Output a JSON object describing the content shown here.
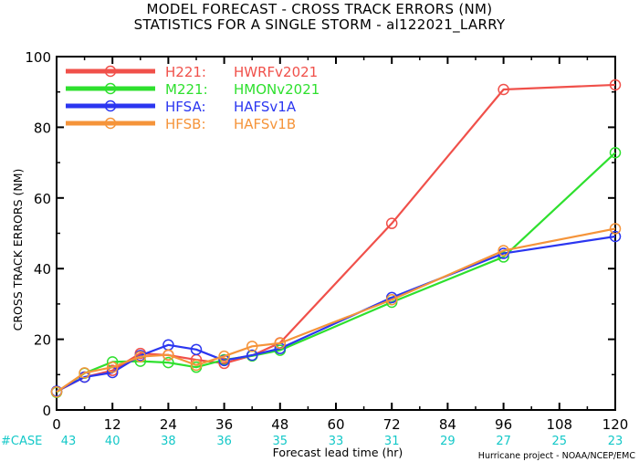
{
  "title_line1": "MODEL FORECAST - CROSS TRACK ERRORS (NM)",
  "title_line2": "STATISTICS FOR A SINGLE STORM - al122021_LARRY",
  "credit": "Hurricane project - NOAA/NCEP/EMC",
  "case_label": "#CASE",
  "colors": {
    "H221": "#f0504a",
    "M221": "#2ee02e",
    "HFSA": "#2b36f0",
    "HFSB": "#f5943a",
    "case": "#14c8c8"
  },
  "chart_data": {
    "type": "line",
    "xlabel": "Forecast lead time (hr)",
    "ylabel": "CROSS TRACK ERRORS (NM)",
    "xlim": [
      0,
      120
    ],
    "ylim": [
      0,
      100
    ],
    "xticks": [
      "0",
      "12",
      "24",
      "36",
      "48",
      "60",
      "72",
      "84",
      "96",
      "108",
      "120"
    ],
    "xtick_values": [
      0,
      12,
      24,
      36,
      48,
      60,
      72,
      84,
      96,
      108,
      120
    ],
    "yticks": [
      "0",
      "20",
      "40",
      "60",
      "80",
      "100"
    ],
    "ytick_values": [
      0,
      20,
      40,
      60,
      80,
      100
    ],
    "cases": [
      "43",
      "40",
      "38",
      "36",
      "35",
      "33",
      "31",
      "29",
      "27",
      "25",
      "23"
    ],
    "series": [
      {
        "id": "H221",
        "name": "H221:",
        "label": "HWRFv2021",
        "x": [
          0,
          6,
          12,
          18,
          24,
          30,
          36,
          42,
          48,
          72,
          96,
          120
        ],
        "y": [
          5.2,
          9.3,
          11.2,
          16.0,
          15.5,
          14.2,
          13.2,
          15.4,
          19.0,
          52.8,
          90.7,
          92.0
        ]
      },
      {
        "id": "M221",
        "name": "M221:",
        "label": "HMONv2021",
        "x": [
          0,
          6,
          12,
          18,
          24,
          30,
          36,
          42,
          48,
          72,
          96,
          120
        ],
        "y": [
          5.0,
          10.4,
          13.6,
          13.8,
          13.4,
          12.1,
          14.2,
          15.3,
          16.9,
          30.5,
          43.3,
          72.8
        ]
      },
      {
        "id": "HFSA",
        "name": "HFSA:",
        "label": "HAFSv1A",
        "x": [
          0,
          6,
          12,
          18,
          24,
          30,
          36,
          42,
          48,
          72,
          96,
          120
        ],
        "y": [
          5.3,
          9.3,
          10.6,
          15.4,
          18.4,
          17.1,
          14.0,
          15.5,
          17.4,
          31.8,
          44.3,
          49.1
        ]
      },
      {
        "id": "HFSB",
        "name": "HFSB:",
        "label": "HAFSv1B",
        "x": [
          0,
          6,
          12,
          18,
          24,
          30,
          36,
          42,
          48,
          72,
          96,
          120
        ],
        "y": [
          5.1,
          10.5,
          12.1,
          15.1,
          15.6,
          12.7,
          15.2,
          18.0,
          18.9,
          31.2,
          45.1,
          51.3
        ]
      }
    ]
  }
}
